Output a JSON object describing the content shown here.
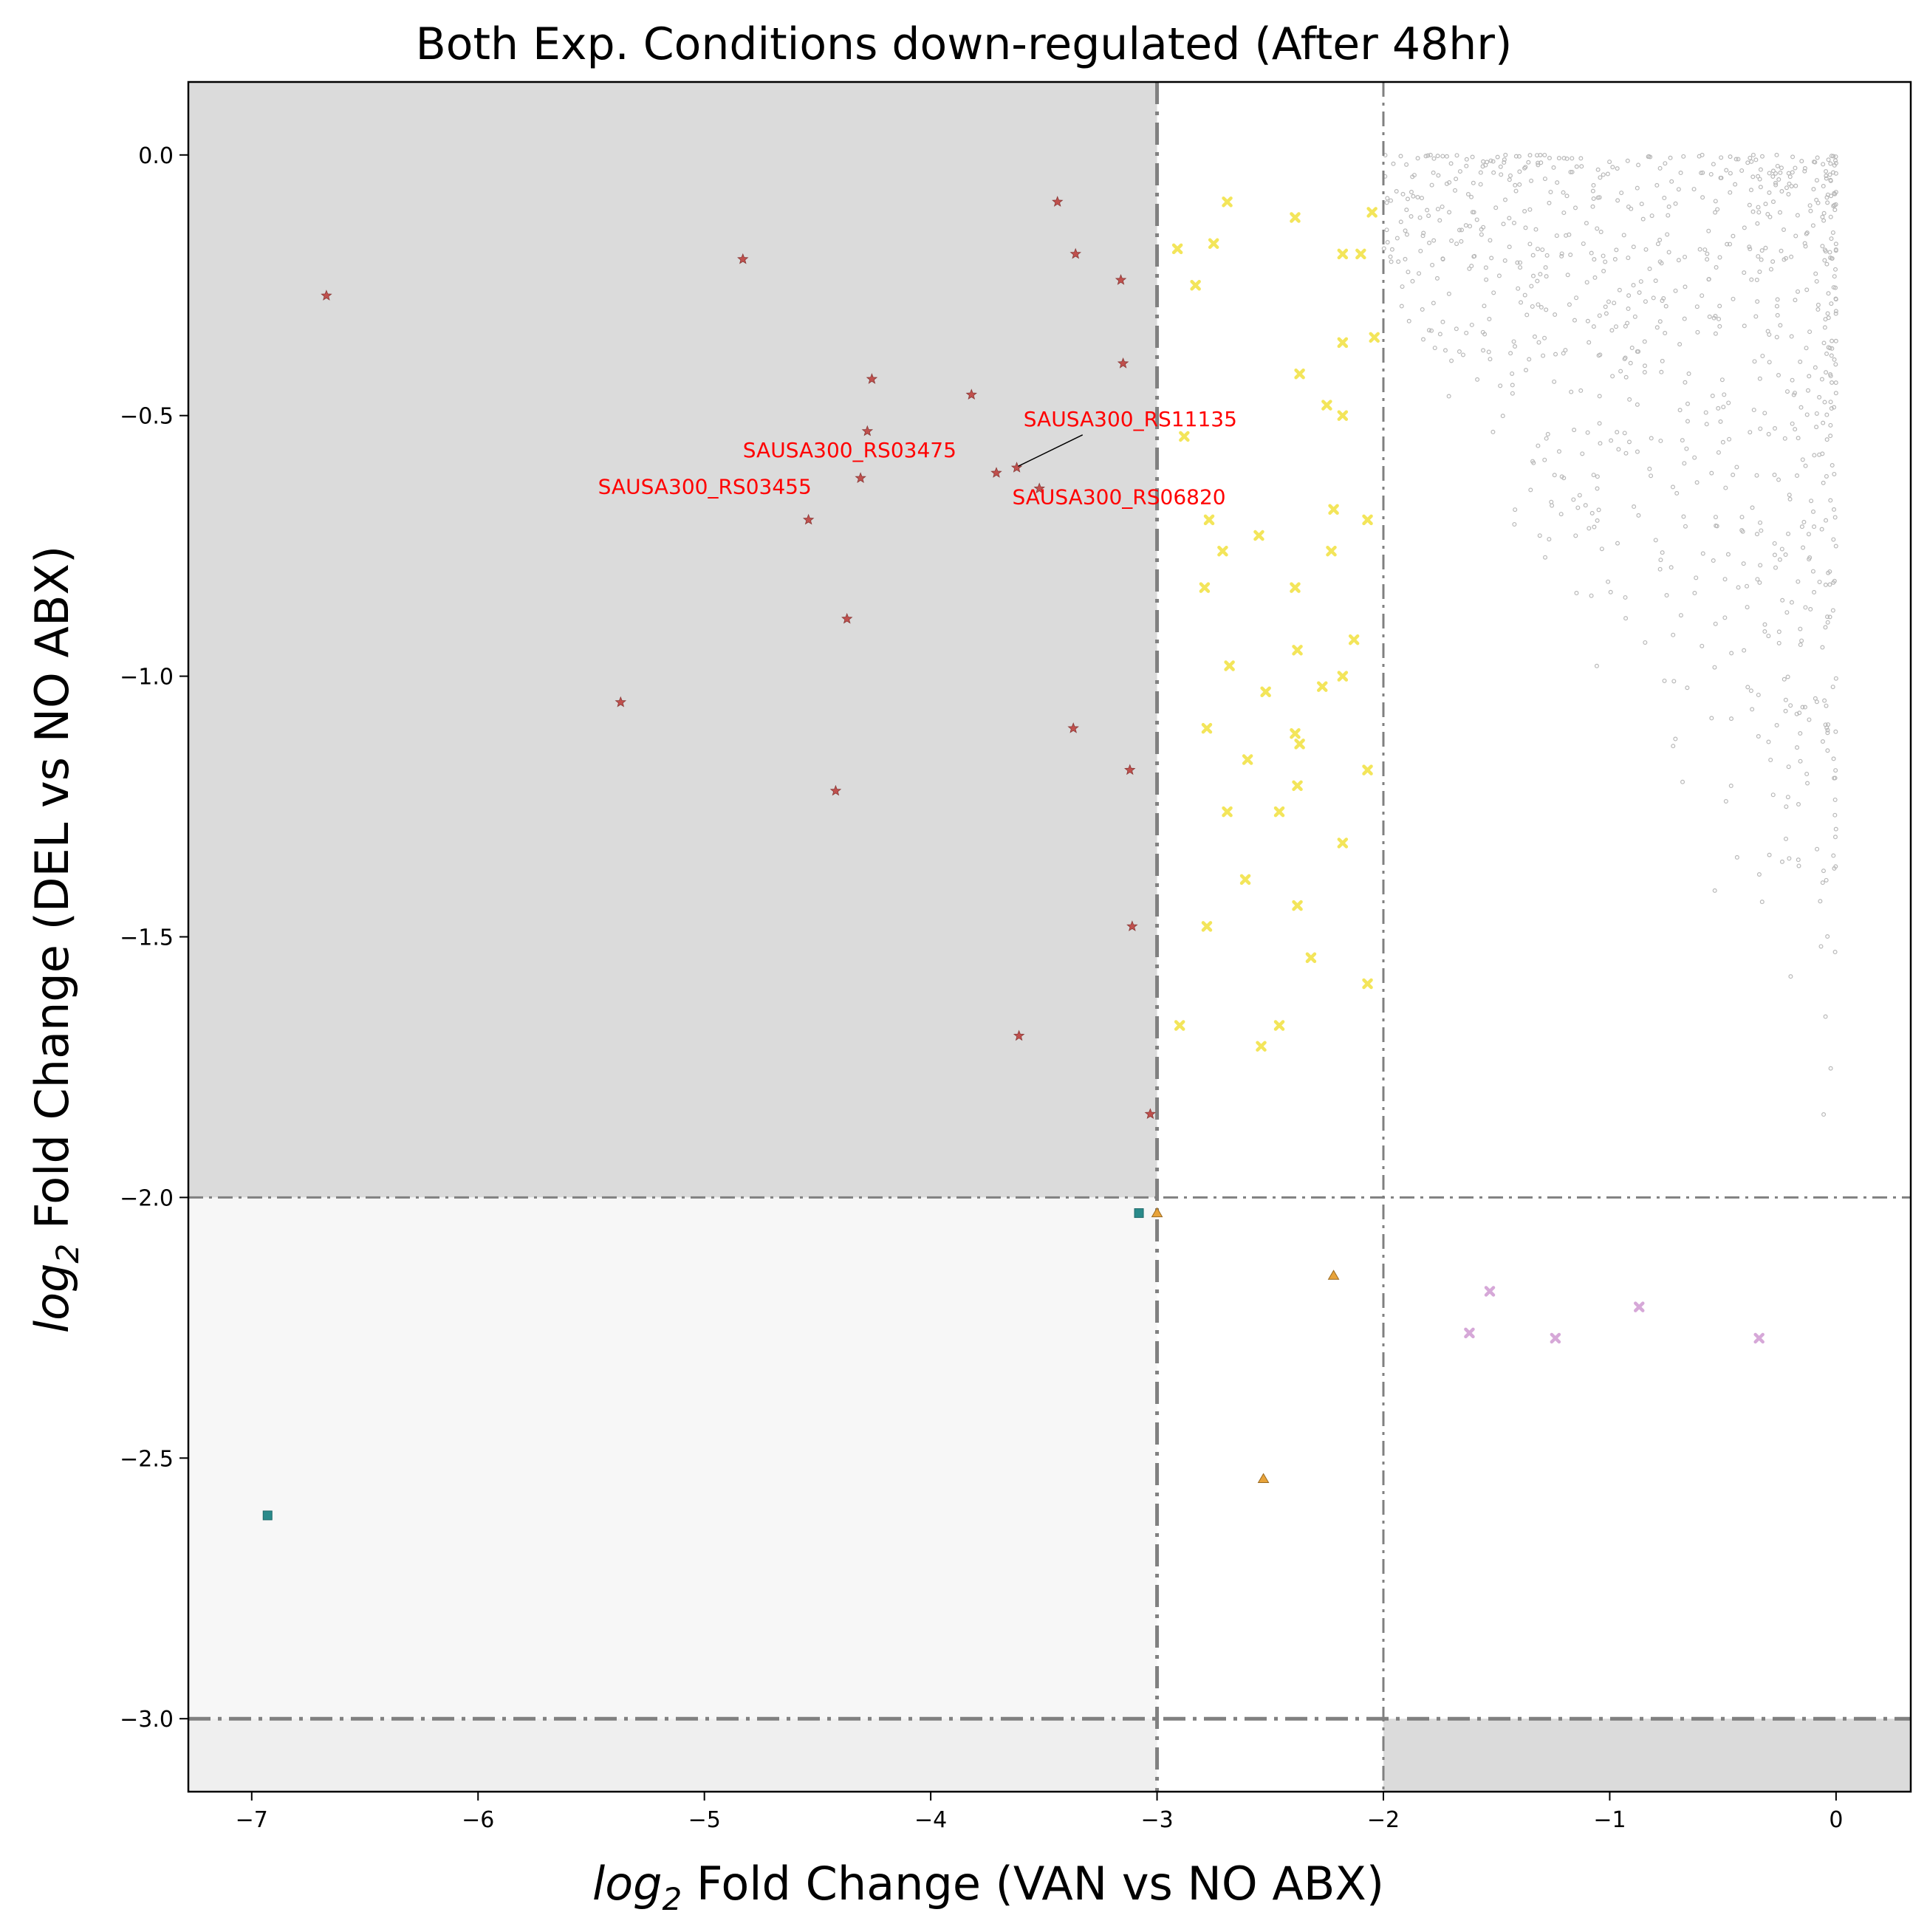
{
  "chart_data": {
    "type": "scatter",
    "title": "Both Exp. Conditions down-regulated (After 48hr)",
    "xlabel": {
      "prefix": "log",
      "sub": "2",
      "rest": " Fold Change (VAN vs NO ABX)"
    },
    "ylabel": {
      "prefix": "log",
      "sub": "2",
      "rest": " Fold Change (DEL vs NO ABX)"
    },
    "xlim": [
      -7.28,
      0.33
    ],
    "ylim": [
      -3.14,
      0.14
    ],
    "x_ticks": [
      -7,
      -6,
      -5,
      -4,
      -3,
      -2,
      -1,
      0
    ],
    "x_tick_labels": [
      "−7",
      "−6",
      "−5",
      "−4",
      "−3",
      "−2",
      "−1",
      "0"
    ],
    "y_ticks": [
      0.0,
      -0.5,
      -1.0,
      -1.5,
      -2.0,
      -2.5,
      -3.0
    ],
    "y_tick_labels": [
      "0.0",
      "−0.5",
      "−1.0",
      "−1.5",
      "−2.0",
      "−2.5",
      "−3.0"
    ],
    "thresholds": {
      "x_dashdot": [
        -3,
        -2
      ],
      "y_dashdot": [
        -2,
        -3
      ]
    },
    "shaded_regions": [
      {
        "x": [
          -7.28,
          -3
        ],
        "y": [
          -2,
          0.14
        ],
        "color": "#dbdbdb"
      },
      {
        "x": [
          -7.28,
          -3
        ],
        "y": [
          -3,
          -2
        ],
        "color": "#f7f7f7"
      },
      {
        "x": [
          -7.28,
          -3
        ],
        "y": [
          -3.14,
          -3
        ],
        "color": "#efefef"
      },
      {
        "x": [
          -2,
          0.33
        ],
        "y": [
          -3.14,
          -3
        ],
        "color": "#dbdbdb"
      }
    ],
    "series": [
      {
        "marker": "star",
        "color": "#c0504d",
        "points": [
          [
            -6.67,
            -0.27
          ],
          [
            -4.83,
            -0.2
          ],
          [
            -3.44,
            -0.09
          ],
          [
            -3.36,
            -0.19
          ],
          [
            -3.16,
            -0.24
          ],
          [
            -3.15,
            -0.4
          ],
          [
            -4.26,
            -0.43
          ],
          [
            -3.82,
            -0.46
          ],
          [
            -4.28,
            -0.53
          ],
          [
            -3.62,
            -0.6
          ],
          [
            -3.71,
            -0.61
          ],
          [
            -4.31,
            -0.62
          ],
          [
            -3.52,
            -0.64
          ],
          [
            -4.54,
            -0.7
          ],
          [
            -4.37,
            -0.89
          ],
          [
            -5.37,
            -1.05
          ],
          [
            -3.37,
            -1.1
          ],
          [
            -3.12,
            -1.18
          ],
          [
            -4.42,
            -1.22
          ],
          [
            -3.11,
            -1.48
          ],
          [
            -3.61,
            -1.69
          ],
          [
            -3.03,
            -1.84
          ]
        ]
      },
      {
        "marker": "x",
        "color": "#f3e55a",
        "points": [
          [
            -2.69,
            -0.09
          ],
          [
            -2.39,
            -0.12
          ],
          [
            -2.05,
            -0.11
          ],
          [
            -2.91,
            -0.18
          ],
          [
            -2.75,
            -0.17
          ],
          [
            -2.83,
            -0.25
          ],
          [
            -2.18,
            -0.19
          ],
          [
            -2.1,
            -0.19
          ],
          [
            -2.37,
            -0.42
          ],
          [
            -2.18,
            -0.36
          ],
          [
            -2.04,
            -0.35
          ],
          [
            -2.25,
            -0.48
          ],
          [
            -2.18,
            -0.5
          ],
          [
            -2.88,
            -0.54
          ],
          [
            -2.22,
            -0.68
          ],
          [
            -2.77,
            -0.7
          ],
          [
            -2.07,
            -0.7
          ],
          [
            -2.71,
            -0.76
          ],
          [
            -2.55,
            -0.73
          ],
          [
            -2.23,
            -0.76
          ],
          [
            -2.79,
            -0.83
          ],
          [
            -2.39,
            -0.83
          ],
          [
            -2.38,
            -0.95
          ],
          [
            -2.13,
            -0.93
          ],
          [
            -2.68,
            -0.98
          ],
          [
            -2.52,
            -1.03
          ],
          [
            -2.27,
            -1.02
          ],
          [
            -2.18,
            -1.0
          ],
          [
            -2.78,
            -1.1
          ],
          [
            -2.39,
            -1.11
          ],
          [
            -2.37,
            -1.13
          ],
          [
            -2.6,
            -1.16
          ],
          [
            -2.07,
            -1.18
          ],
          [
            -2.38,
            -1.21
          ],
          [
            -2.69,
            -1.26
          ],
          [
            -2.46,
            -1.26
          ],
          [
            -2.18,
            -1.32
          ],
          [
            -2.61,
            -1.39
          ],
          [
            -2.38,
            -1.44
          ],
          [
            -2.78,
            -1.48
          ],
          [
            -2.32,
            -1.54
          ],
          [
            -2.07,
            -1.59
          ],
          [
            -2.9,
            -1.67
          ],
          [
            -2.46,
            -1.67
          ],
          [
            -2.54,
            -1.71
          ]
        ]
      },
      {
        "marker": "square",
        "color": "#2a8a8a",
        "points": [
          [
            -3.08,
            -2.03
          ],
          [
            -6.93,
            -2.61
          ]
        ]
      },
      {
        "marker": "triangle",
        "color": "#e8a33a",
        "points": [
          [
            -3.0,
            -2.03
          ],
          [
            -2.22,
            -2.15
          ],
          [
            -2.53,
            -2.54
          ]
        ]
      },
      {
        "marker": "x",
        "color": "#d6a8d8",
        "points": [
          [
            -1.53,
            -2.18
          ],
          [
            -1.62,
            -2.26
          ],
          [
            -1.24,
            -2.27
          ],
          [
            -0.87,
            -2.21
          ],
          [
            -0.34,
            -2.27
          ]
        ]
      },
      {
        "marker": "dot",
        "color": "#c8c8c8",
        "points": "background cloud of non-significant genes, x in [-2, 0], y in [-1.9, 0]"
      }
    ],
    "annotations": [
      {
        "text": "SAUSA300_RS11135",
        "x": -3.62,
        "y": -0.6,
        "label_x": -3.59,
        "label_y": -0.52,
        "arrow": true
      },
      {
        "text": "SAUSA300_RS03475",
        "x": -3.71,
        "y": -0.61,
        "label_x": -4.83,
        "label_y": -0.58,
        "arrow": false
      },
      {
        "text": "SAUSA300_RS03455",
        "x": -4.31,
        "y": -0.62,
        "label_x": -5.47,
        "label_y": -0.65,
        "arrow": false
      },
      {
        "text": "SAUSA300_RS06820",
        "x": -3.52,
        "y": -0.64,
        "label_x": -3.64,
        "label_y": -0.67,
        "arrow": false
      }
    ],
    "annotation_color": "#ff0000",
    "grid": false,
    "legend": "none"
  }
}
